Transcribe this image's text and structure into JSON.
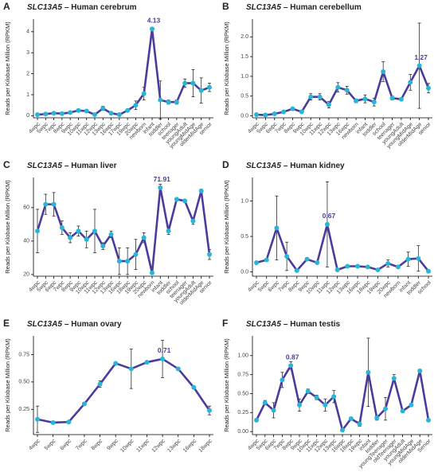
{
  "chart_data": [
    {
      "type": "line",
      "panel": "A",
      "gene": "SLC13A5",
      "title": "– Human cerebrum",
      "y_label": "Reads per Kilobase Million (RPKM)",
      "categories": [
        "4wpc",
        "5wpc",
        "7wpc",
        "8wpc",
        "9wpc",
        "10wpc",
        "11wpc",
        "12wpc",
        "13wpc",
        "16wpc",
        "17wpc",
        "19wpc",
        "20wpc",
        "newborn",
        "infant",
        "toddler",
        "school",
        "teenager",
        "youngAdult",
        "youngMidAge",
        "olderMidAge",
        "senior"
      ],
      "values": [
        0.05,
        0.08,
        0.12,
        0.1,
        0.15,
        0.25,
        0.22,
        0.05,
        0.35,
        0.12,
        0.05,
        0.25,
        0.5,
        1.05,
        4.13,
        0.75,
        0.65,
        0.65,
        1.55,
        1.55,
        1.2,
        1.35
      ],
      "errors": [
        0.02,
        0.02,
        0.03,
        0.03,
        0.03,
        0.05,
        0.05,
        0.03,
        0.1,
        0.05,
        0.02,
        0.05,
        0.2,
        0.3,
        0.05,
        0.9,
        0.1,
        0.1,
        0.2,
        0.65,
        0.6,
        0.2
      ],
      "value_labels": [
        null,
        null,
        null,
        null,
        null,
        null,
        null,
        null,
        null,
        null,
        null,
        null,
        null,
        null,
        "4.13",
        null,
        null,
        null,
        null,
        null,
        null,
        null
      ],
      "color": "#4b3c9c",
      "marker_color": "#29b6d6",
      "ylim": [
        -0.1,
        4.6
      ],
      "yticks": [
        0,
        1,
        2,
        3,
        4
      ]
    },
    {
      "type": "line",
      "panel": "B",
      "gene": "SLC13A5",
      "title": "– Human cerebellum",
      "y_label": "Reads per Kilobase Million (RPKM)",
      "categories": [
        "4wpc",
        "5wpc",
        "6wpc",
        "7wpc",
        "8wpc",
        "9wpc",
        "10wpc",
        "11wpc",
        "12wpc",
        "13wpc",
        "16wpc",
        "newborn",
        "infant",
        "toddler",
        "school",
        "teenager",
        "youngAdult",
        "youngMidAge",
        "olderMidAge",
        "senior"
      ],
      "values": [
        0.03,
        0.02,
        0.05,
        0.1,
        0.18,
        0.1,
        0.48,
        0.48,
        0.28,
        0.72,
        0.65,
        0.38,
        0.43,
        0.35,
        1.12,
        0.45,
        0.42,
        0.85,
        1.27,
        0.7
      ],
      "errors": [
        0.02,
        0.02,
        0.02,
        0.03,
        0.03,
        0.02,
        0.08,
        0.08,
        0.08,
        0.12,
        0.1,
        0.05,
        0.1,
        0.1,
        0.25,
        0.05,
        0.03,
        0.2,
        1.08,
        0.12
      ],
      "value_labels": [
        null,
        null,
        null,
        null,
        null,
        null,
        null,
        null,
        null,
        null,
        null,
        null,
        null,
        null,
        null,
        null,
        null,
        null,
        "1.27",
        null
      ],
      "color": "#4b3c9c",
      "marker_color": "#29b6d6",
      "ylim": [
        -0.05,
        2.45
      ],
      "yticks": [
        {
          "value": 0,
          "label": "0.0"
        },
        0.5,
        {
          "value": 1,
          "label": "1.0"
        },
        1.5,
        {
          "value": 2,
          "label": "2.0"
        }
      ]
    },
    {
      "type": "line",
      "panel": "C",
      "gene": "SLC13A5",
      "title": "– Human liver",
      "y_label": "Reads per Kilobase Million (RPKM)",
      "categories": [
        "4wpc",
        "5wpc",
        "6wpc",
        "7wpc",
        "8wpc",
        "9wpc",
        "10wpc",
        "11wpc",
        "12wpc",
        "13wpc",
        "16wpc",
        "18wpc",
        "19wpc",
        "20wpc",
        "newborn",
        "infant",
        "toddler",
        "school",
        "teenager",
        "youngAdult",
        "olderMidAge",
        "senior"
      ],
      "values": [
        46,
        62,
        62,
        48,
        42,
        46,
        41,
        46,
        37,
        44,
        28,
        28,
        32,
        42,
        21,
        71.91,
        46,
        65,
        64,
        52,
        70,
        32
      ],
      "errors": [
        13,
        6,
        7,
        4,
        3,
        3,
        5,
        13,
        2,
        2,
        8,
        8,
        9,
        3,
        1,
        2,
        2,
        1,
        1,
        2,
        1,
        3
      ],
      "value_labels": [
        null,
        null,
        null,
        null,
        null,
        null,
        null,
        null,
        null,
        null,
        null,
        null,
        null,
        null,
        null,
        "71.91",
        null,
        null,
        null,
        null,
        null,
        null
      ],
      "color": "#4b3c9c",
      "marker_color": "#29b6d6",
      "ylim": [
        19,
        78
      ],
      "yticks": [
        20,
        40,
        60
      ]
    },
    {
      "type": "line",
      "panel": "D",
      "gene": "SLC13A5",
      "title": "– Human kidney",
      "y_label": "Reads per Kilobase Million (RPKM)",
      "categories": [
        "4wpc",
        "5wpc",
        "6wpc",
        "7wpc",
        "8wpc",
        "9wpc",
        "10wpc",
        "11wpc",
        "12wpc",
        "13wpc",
        "16wpc",
        "18wpc",
        "19wpc",
        "20wpc",
        "newborn",
        "infant",
        "toddler",
        "school"
      ],
      "values": [
        0.13,
        0.17,
        0.62,
        0.22,
        0.02,
        0.18,
        0.13,
        0.67,
        0.03,
        0.08,
        0.08,
        0.07,
        0.03,
        0.12,
        0.07,
        0.18,
        0.19,
        0.01
      ],
      "errors": [
        0.02,
        0.02,
        0.45,
        0.2,
        0.02,
        0.02,
        0.02,
        0.6,
        0.01,
        0.02,
        0.02,
        0.02,
        0.01,
        0.05,
        0.02,
        0.1,
        0.18,
        0.01
      ],
      "value_labels": [
        null,
        null,
        null,
        null,
        null,
        null,
        null,
        "0.67",
        null,
        null,
        null,
        null,
        null,
        null,
        null,
        null,
        null,
        null
      ],
      "color": "#4b3c9c",
      "marker_color": "#29b6d6",
      "ylim": [
        -0.06,
        1.33
      ],
      "yticks": [
        {
          "value": 0,
          "label": "0.0"
        },
        0.5,
        {
          "value": 1,
          "label": "1.0"
        }
      ]
    },
    {
      "type": "line",
      "panel": "E",
      "gene": "SLC13A5",
      "title": "– Human ovary",
      "y_label": "Reads per Kilobase Million (RPKM)",
      "categories": [
        "4wpc",
        "5wpc",
        "6wpc",
        "7wpc",
        "8wpc",
        "9wpc",
        "10wpc",
        "11wpc",
        "12wpc",
        "13wpc",
        "16wpc",
        "18wpc"
      ],
      "values": [
        0.16,
        0.13,
        0.135,
        0.3,
        0.48,
        0.67,
        0.62,
        0.68,
        0.71,
        0.62,
        0.45,
        0.24
      ],
      "errors": [
        0.12,
        0.01,
        0.01,
        0.01,
        0.03,
        0.01,
        0.18,
        0.01,
        0.17,
        0.01,
        0.01,
        0.04
      ],
      "value_labels": [
        null,
        null,
        null,
        null,
        null,
        null,
        null,
        null,
        "0.71",
        null,
        null,
        null
      ],
      "color": "#4b3c9c",
      "marker_color": "#29b6d6",
      "ylim": [
        0.02,
        0.92
      ],
      "yticks": [
        0.25,
        {
          "value": 0.5,
          "label": "0.50"
        },
        0.75
      ]
    },
    {
      "type": "line",
      "panel": "F",
      "gene": "SLC13A5",
      "title": "– Human testis",
      "y_label": "Reads per Kilobase Million (RPKM)",
      "categories": [
        "4wpc",
        "5wpc",
        "6wpc",
        "7wpc",
        "8wpc",
        "9wpc",
        "10wpc",
        "11wpc",
        "12wpc",
        "13wpc",
        "16wpc",
        "18wpc",
        "19wpc",
        "infant",
        "toddler",
        "youngTeenager",
        "oldTeenager",
        "youngAdult",
        "youngMidAge",
        "olderMidAge",
        "Senior"
      ],
      "values": [
        0.15,
        0.38,
        0.28,
        0.68,
        0.87,
        0.35,
        0.53,
        0.45,
        0.35,
        0.46,
        0.02,
        0.17,
        0.1,
        0.78,
        0.18,
        0.3,
        0.7,
        0.27,
        0.35,
        0.8,
        0.15
      ],
      "errors": [
        0.02,
        0.03,
        0.1,
        0.1,
        0.05,
        0.08,
        0.03,
        0.03,
        0.08,
        0.08,
        0.02,
        0.02,
        0.03,
        0.45,
        0.03,
        0.15,
        0.05,
        0.02,
        0.02,
        0.02,
        0.01
      ],
      "value_labels": [
        null,
        null,
        null,
        null,
        "0.87",
        null,
        null,
        null,
        null,
        null,
        null,
        null,
        null,
        null,
        null,
        null,
        null,
        null,
        null,
        null,
        null
      ],
      "color": "#4b3c9c",
      "marker_color": "#29b6d6",
      "ylim": [
        -0.04,
        1.26
      ],
      "yticks": [
        {
          "value": 0,
          "label": "0.00"
        },
        0.25,
        {
          "value": 0.5,
          "label": "0.50"
        },
        0.75,
        {
          "value": 1,
          "label": "1.00"
        }
      ]
    }
  ]
}
